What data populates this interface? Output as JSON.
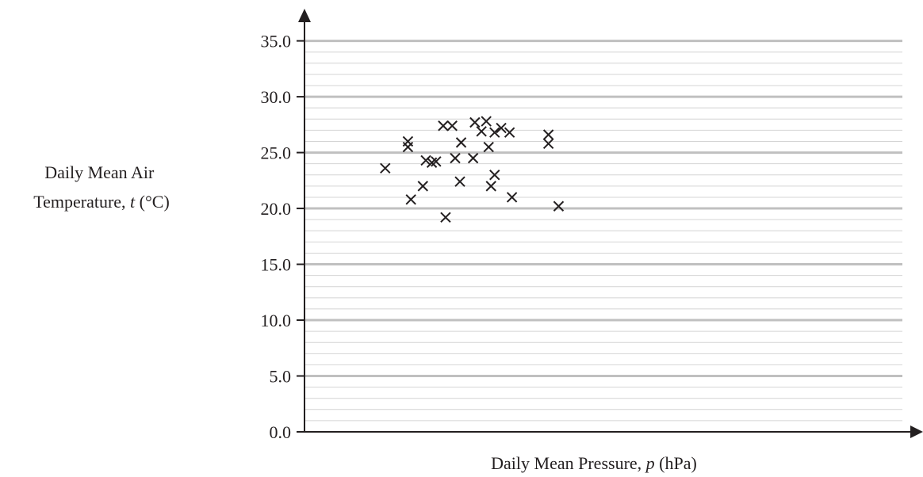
{
  "chart_data": {
    "type": "scatter",
    "title": "",
    "xlabel_parts": [
      "Daily Mean Pressure, ",
      "p",
      " (hPa)"
    ],
    "ylabel_lines": [
      [
        "Daily Mean Air"
      ],
      [
        "Temperature, ",
        "t",
        " (°C)"
      ]
    ],
    "ylim": [
      0,
      35
    ],
    "yticks": [
      0,
      5,
      10,
      15,
      20,
      25,
      30,
      35
    ],
    "ytick_labels": [
      "0.0",
      "5.0",
      "10.0",
      "15.0",
      "20.0",
      "25.0",
      "30.0",
      "35.0"
    ],
    "y_minor_step": 1,
    "grid": true,
    "x_tick_labels_shown": false,
    "xlim": [
      0,
      100
    ],
    "marker": "x",
    "colors": {
      "axis": "#231f20",
      "major_grid": "#c0c0c0",
      "minor_grid": "#d4d4d4",
      "marker": "#231f20"
    },
    "points": [
      {
        "x": 13.5,
        "y": 23.6
      },
      {
        "x": 17.3,
        "y": 26.0
      },
      {
        "x": 17.3,
        "y": 25.5
      },
      {
        "x": 17.8,
        "y": 20.8
      },
      {
        "x": 19.8,
        "y": 22.0
      },
      {
        "x": 20.3,
        "y": 24.3
      },
      {
        "x": 21.3,
        "y": 24.1
      },
      {
        "x": 22.0,
        "y": 24.2
      },
      {
        "x": 23.2,
        "y": 27.4
      },
      {
        "x": 23.6,
        "y": 19.2
      },
      {
        "x": 24.7,
        "y": 27.4
      },
      {
        "x": 25.2,
        "y": 24.5
      },
      {
        "x": 26.0,
        "y": 22.4
      },
      {
        "x": 26.2,
        "y": 25.9
      },
      {
        "x": 28.2,
        "y": 24.5
      },
      {
        "x": 28.5,
        "y": 27.7
      },
      {
        "x": 29.6,
        "y": 26.9
      },
      {
        "x": 30.4,
        "y": 27.8
      },
      {
        "x": 30.8,
        "y": 25.5
      },
      {
        "x": 31.2,
        "y": 22.0
      },
      {
        "x": 31.8,
        "y": 23.0
      },
      {
        "x": 31.8,
        "y": 26.8
      },
      {
        "x": 32.9,
        "y": 27.2
      },
      {
        "x": 34.3,
        "y": 26.8
      },
      {
        "x": 34.7,
        "y": 21.0
      },
      {
        "x": 40.8,
        "y": 26.6
      },
      {
        "x": 40.8,
        "y": 25.8
      },
      {
        "x": 42.5,
        "y": 20.2
      }
    ]
  }
}
